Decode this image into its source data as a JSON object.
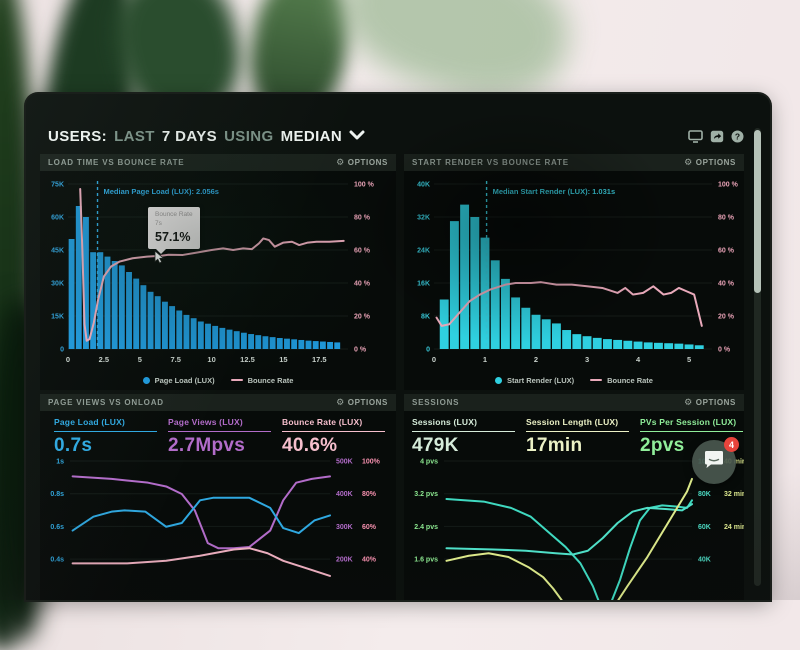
{
  "ui": {
    "header": {
      "users": "USERS:",
      "last": "LAST",
      "days": "7 DAYS",
      "using": "USING",
      "median": "MEDIAN"
    },
    "toolbar": {
      "icons": [
        "display-icon",
        "share-icon",
        "help-icon"
      ]
    },
    "scrollbar": {
      "thumb_position": "top"
    },
    "chat": {
      "badge_count": "4"
    }
  },
  "charts": {
    "load_time": {
      "title": "LOAD TIME VS BOUNCE RATE",
      "options": "OPTIONS",
      "type": "histogram+line",
      "y_left": [
        "75K",
        "60K",
        "45K",
        "30K",
        "15K",
        "0"
      ],
      "y_left_max": 75,
      "y_right": [
        "100 %",
        "80 %",
        "60 %",
        "40 %",
        "20 %",
        "0 %"
      ],
      "x_ticks": [
        0,
        2.5,
        5,
        7.5,
        10,
        12.5,
        15,
        17.5
      ],
      "x_max": 19.5,
      "bar_color": "#1f97d8",
      "axis_color": "#2f9fd8",
      "line_color": "#e9aabb",
      "bar_start": 0,
      "bar_step": 0.5,
      "bars": [
        50,
        65,
        60,
        44,
        44,
        42,
        40,
        38,
        35,
        32,
        29,
        26,
        24,
        21.5,
        19.5,
        17.5,
        15.5,
        14,
        12.5,
        11.5,
        10.5,
        9.6,
        8.8,
        8.1,
        7.4,
        6.8,
        6.3,
        5.8,
        5.4,
        5,
        4.7,
        4.4,
        4.1,
        3.8,
        3.6,
        3.4,
        3.2,
        3
      ],
      "line": [
        [
          0.85,
          97
        ],
        [
          1.0,
          60
        ],
        [
          1.15,
          15
        ],
        [
          1.3,
          5
        ],
        [
          1.5,
          6
        ],
        [
          1.8,
          16
        ],
        [
          2.1,
          30
        ],
        [
          2.5,
          44
        ],
        [
          3.0,
          50
        ],
        [
          3.6,
          53
        ],
        [
          4.5,
          55
        ],
        [
          5.5,
          56
        ],
        [
          6.5,
          56.5
        ],
        [
          7.0,
          57.1
        ],
        [
          8.0,
          57
        ],
        [
          9.0,
          58.5
        ],
        [
          10.0,
          60
        ],
        [
          10.8,
          61
        ],
        [
          11.5,
          60
        ],
        [
          12.2,
          61
        ],
        [
          12.8,
          60.5
        ],
        [
          13.3,
          64
        ],
        [
          13.6,
          67
        ],
        [
          14.0,
          66
        ],
        [
          14.4,
          62
        ],
        [
          15.0,
          64.5
        ],
        [
          15.6,
          65
        ],
        [
          16.1,
          63
        ],
        [
          16.7,
          64.5
        ],
        [
          17.3,
          65
        ],
        [
          18.2,
          65
        ],
        [
          19.2,
          65.5
        ]
      ],
      "median": {
        "label": "Median Page Load (LUX): 2.056s",
        "x": 2.056,
        "color": "#2fa8e0"
      },
      "tooltip": {
        "series": "Bounce Rate",
        "x_label": "7s",
        "value": "57.1%"
      },
      "legend": [
        {
          "label": "Page Load (LUX)",
          "color": "#1f97d8",
          "shape": "dot"
        },
        {
          "label": "Bounce Rate",
          "color": "#e9aabb",
          "shape": "line"
        }
      ]
    },
    "start_render": {
      "title": "START RENDER VS BOUNCE RATE",
      "options": "OPTIONS",
      "type": "histogram+line",
      "y_left": [
        "40K",
        "32K",
        "24K",
        "16K",
        "8K",
        "0"
      ],
      "y_left_max": 40,
      "y_right": [
        "100 %",
        "80 %",
        "60 %",
        "40 %",
        "20 %",
        "0 %"
      ],
      "x_ticks": [
        0,
        1,
        2,
        3,
        4,
        5
      ],
      "x_max": 5.45,
      "bar_color": "#2fd0e0",
      "axis_color": "#38c8d8",
      "line_color": "#e9aabb",
      "bar_start": 0.1,
      "bar_step": 0.2,
      "bars": [
        12,
        31,
        35,
        32,
        27,
        21.5,
        17,
        12.5,
        10,
        8.3,
        7.2,
        6.2,
        4.6,
        3.6,
        3.1,
        2.7,
        2.4,
        2.2,
        2,
        1.8,
        1.6,
        1.5,
        1.4,
        1.3,
        1.1,
        0.9
      ],
      "line": [
        [
          0.05,
          19
        ],
        [
          0.15,
          14
        ],
        [
          0.3,
          15
        ],
        [
          0.5,
          22
        ],
        [
          0.7,
          29
        ],
        [
          0.9,
          33
        ],
        [
          1.1,
          36
        ],
        [
          1.4,
          39
        ],
        [
          1.6,
          40
        ],
        [
          1.9,
          40
        ],
        [
          2.1,
          40.5
        ],
        [
          2.4,
          39
        ],
        [
          2.7,
          39
        ],
        [
          3.0,
          38
        ],
        [
          3.3,
          37
        ],
        [
          3.6,
          34
        ],
        [
          3.75,
          37
        ],
        [
          3.9,
          33
        ],
        [
          4.1,
          34
        ],
        [
          4.3,
          38
        ],
        [
          4.5,
          33
        ],
        [
          4.65,
          34
        ],
        [
          4.8,
          37
        ],
        [
          4.95,
          35
        ],
        [
          5.1,
          33
        ],
        [
          5.25,
          14
        ]
      ],
      "median": {
        "label": "Median Start Render (LUX): 1.031s",
        "x": 1.031,
        "color": "#38c8d8"
      },
      "legend": [
        {
          "label": "Start Render (LUX)",
          "color": "#2fd0e0",
          "shape": "dot"
        },
        {
          "label": "Bounce Rate",
          "color": "#e9aabb",
          "shape": "line"
        }
      ]
    },
    "page_views": {
      "title": "PAGE VIEWS VS ONLOAD",
      "options": "OPTIONS",
      "type": "multi-line",
      "metrics": [
        {
          "label": "Page Load (LUX)",
          "value": "0.7s",
          "color": "#2fa8e0"
        },
        {
          "label": "Page Views (LUX)",
          "value": "2.7Mpvs",
          "color": "#b26cc9"
        },
        {
          "label": "Bounce Rate (LUX)",
          "value": "40.6%",
          "color": "#f6bfcd"
        }
      ],
      "y_left": {
        "labels": [
          "1s",
          "0.8s",
          "0.6s",
          "0.4s"
        ],
        "color": "#2fa8e0"
      },
      "y_right_cols": [
        {
          "labels": [
            "500K",
            "400K",
            "300K",
            "200K"
          ],
          "color": "#b26cc9"
        },
        {
          "labels": [
            "100%",
            "80%",
            "60%",
            "40%"
          ],
          "color": "#f590ae"
        }
      ],
      "lines": [
        {
          "name": "Page Views (LUX)",
          "color": "#b26cc9",
          "points": [
            [
              1,
              13
            ],
            [
              16,
              15
            ],
            [
              30,
              18
            ],
            [
              37,
              21
            ],
            [
              43,
              27
            ],
            [
              48,
              40
            ],
            [
              53,
              66
            ],
            [
              57,
              70
            ],
            [
              63,
              70
            ],
            [
              69,
              69
            ],
            [
              77,
              56
            ],
            [
              82,
              32
            ],
            [
              87,
              18
            ],
            [
              93,
              15
            ],
            [
              100,
              13
            ]
          ]
        },
        {
          "name": "Page Load (LUX)",
          "color": "#2fa8e0",
          "points": [
            [
              1,
              56
            ],
            [
              9,
              45
            ],
            [
              16,
              41
            ],
            [
              21,
              40
            ],
            [
              29,
              41
            ],
            [
              37,
              53
            ],
            [
              43,
              50
            ],
            [
              50,
              32
            ],
            [
              55,
              30
            ],
            [
              69,
              30
            ],
            [
              77,
              38
            ],
            [
              82,
              54
            ],
            [
              88,
              58
            ],
            [
              94,
              48
            ],
            [
              100,
              44
            ]
          ]
        },
        {
          "name": "Bounce Rate (LUX)",
          "color": "#eeb0c0",
          "points": [
            [
              1,
              82
            ],
            [
              22,
              82
            ],
            [
              37,
              80
            ],
            [
              50,
              76
            ],
            [
              63,
              71
            ],
            [
              69,
              70
            ],
            [
              76,
              74
            ],
            [
              82,
              80
            ],
            [
              91,
              86
            ],
            [
              100,
              92
            ]
          ]
        }
      ]
    },
    "sessions": {
      "title": "SESSIONS",
      "options": "OPTIONS",
      "type": "multi-line",
      "metrics": [
        {
          "label": "Sessions (LUX)",
          "value": "479K",
          "color": "#d6ecda"
        },
        {
          "label": "Session Length (LUX)",
          "value": "17min",
          "color": "#ecf2c6"
        },
        {
          "label": "PVs Per Session (LUX)",
          "value": "2pvs",
          "color": "#90ee9a"
        }
      ],
      "y_left": {
        "labels": [
          "4 pvs",
          "3.2 pvs",
          "2.4 pvs",
          "1.6 pvs"
        ],
        "color": "#8be68f"
      },
      "y_right_cols": [
        {
          "labels": [
            "100K",
            "80K",
            "60K",
            "40K"
          ],
          "color": "#4cd9c2"
        },
        {
          "labels": [
            "40 min",
            "32 min",
            "24 min",
            ""
          ],
          "color": "#dde98f"
        }
      ],
      "lines": [
        {
          "name": "Sessions (LUX)",
          "color": "#3fd9c0",
          "points": [
            [
              1,
              31
            ],
            [
              16,
              33
            ],
            [
              27,
              38
            ],
            [
              35,
              45
            ],
            [
              42,
              57
            ],
            [
              49,
              69
            ],
            [
              55,
              82
            ],
            [
              60,
              100
            ],
            [
              63,
              115
            ],
            [
              67,
              115
            ],
            [
              71,
              95
            ],
            [
              75,
              70
            ],
            [
              79,
              48
            ],
            [
              83,
              38
            ],
            [
              88,
              36
            ],
            [
              94,
              37
            ],
            [
              98,
              38
            ],
            [
              100,
              32
            ]
          ]
        },
        {
          "name": "PVs Per Session (LUX)",
          "color": "#4fe0c8",
          "points": [
            [
              1,
              70
            ],
            [
              20,
              71
            ],
            [
              33,
              72
            ],
            [
              45,
              74
            ],
            [
              52,
              75
            ],
            [
              58,
              72
            ],
            [
              64,
              62
            ],
            [
              70,
              50
            ],
            [
              76,
              41
            ],
            [
              82,
              38
            ],
            [
              90,
              39
            ],
            [
              96,
              40
            ],
            [
              100,
              35
            ]
          ]
        },
        {
          "name": "Session Length (LUX)",
          "color": "#dce98a",
          "points": [
            [
              1,
              80
            ],
            [
              10,
              76
            ],
            [
              18,
              74
            ],
            [
              26,
              77
            ],
            [
              34,
              85
            ],
            [
              40,
              93
            ],
            [
              44,
              102
            ],
            [
              50,
              118
            ],
            [
              68,
              118
            ],
            [
              74,
              100
            ],
            [
              82,
              77
            ],
            [
              90,
              51
            ],
            [
              98,
              25
            ],
            [
              100,
              15
            ]
          ]
        }
      ]
    }
  }
}
